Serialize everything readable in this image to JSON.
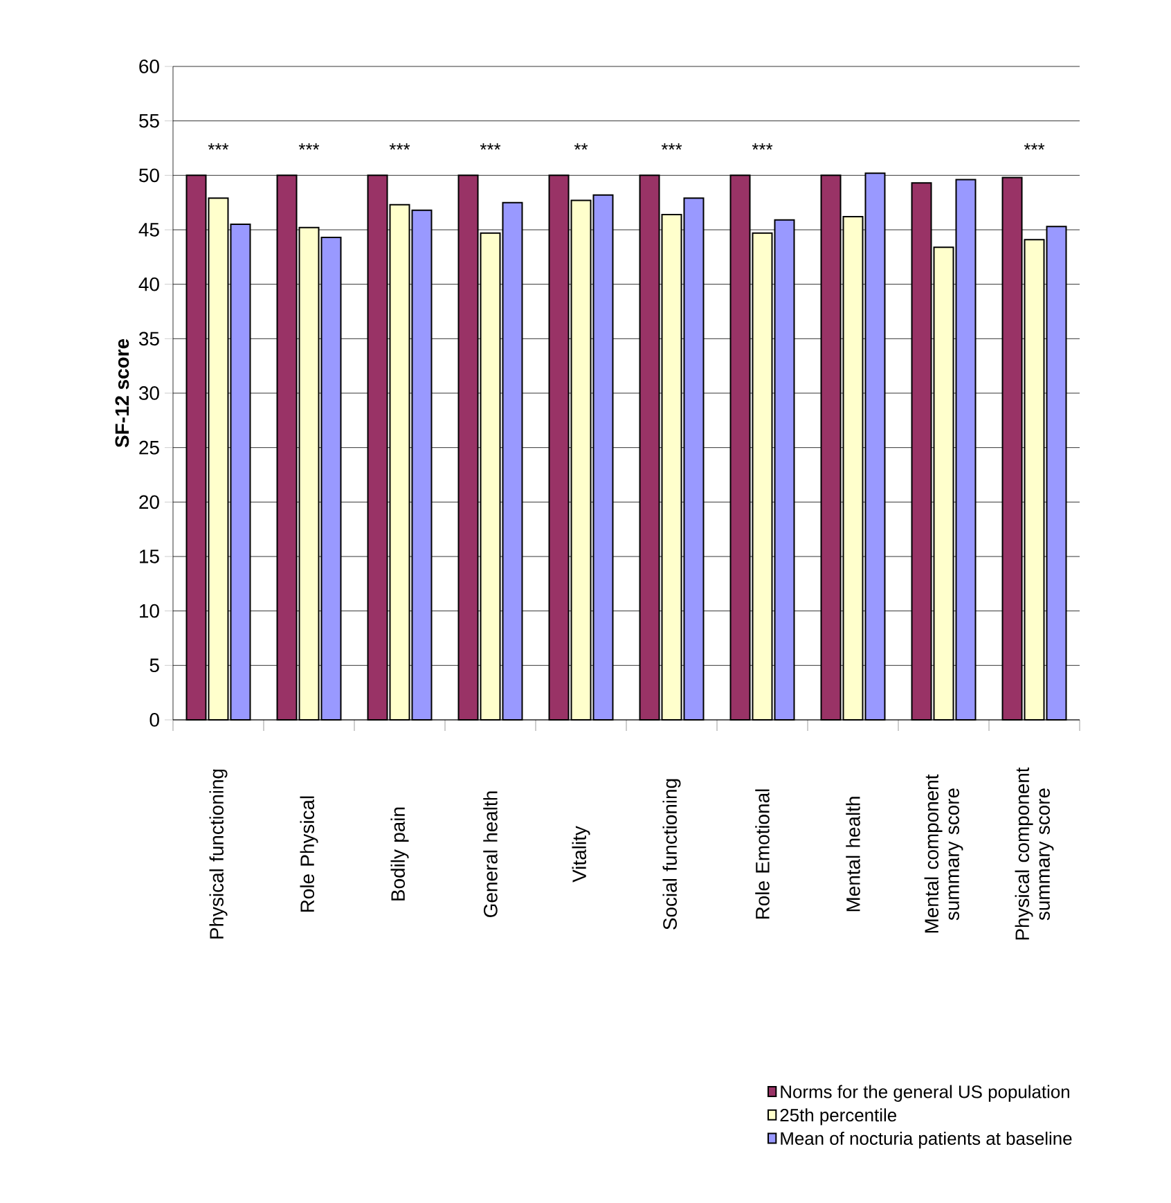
{
  "chart_data": {
    "type": "bar",
    "ylabel": "SF-12 score",
    "categories": [
      "Physical functioning",
      "Role Physical",
      "Bodily pain",
      "General health",
      "Vitality",
      "Social functioning",
      "Role Emotional",
      "Mental health",
      "Mental component summary score",
      "Physical component summary score"
    ],
    "series": [
      {
        "name": "Norms for the general US population",
        "color": "#993366",
        "values": [
          50,
          50,
          50,
          50,
          50,
          50,
          50,
          50,
          49.3,
          49.8
        ]
      },
      {
        "name": "25th percentile",
        "color": "#ffffcc",
        "values": [
          47.9,
          45.2,
          47.3,
          44.7,
          47.7,
          46.4,
          44.7,
          46.2,
          43.4,
          44.1
        ]
      },
      {
        "name": "Mean of nocturia patients at baseline",
        "color": "#9999ff",
        "values": [
          45.5,
          44.3,
          46.8,
          47.5,
          48.2,
          47.9,
          45.9,
          50.2,
          49.6,
          45.3
        ]
      }
    ],
    "ylim": [
      0,
      60
    ],
    "yticks": [
      0,
      5,
      10,
      15,
      20,
      25,
      30,
      35,
      40,
      45,
      50,
      55,
      60
    ],
    "grid": "y",
    "legend": "bottom",
    "annotations": [
      "***",
      "***",
      "***",
      "***",
      "**",
      "***",
      "***",
      "***"
    ]
  }
}
